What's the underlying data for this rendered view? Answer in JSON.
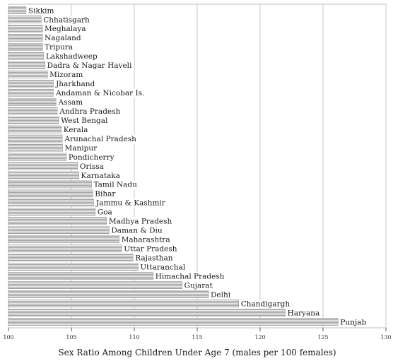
{
  "chart_data": {
    "type": "bar",
    "orientation": "horizontal",
    "xlabel": "Sex Ratio Among Children Under Age 7 (males per 100 females)",
    "xlim": [
      100,
      130
    ],
    "xticks": [
      "100",
      "105",
      "110",
      "115",
      "120",
      "125",
      "130"
    ],
    "grid": true,
    "categories": [
      "Sikkim",
      "Chhatisgarh",
      "Meghalaya",
      "Nagaland",
      "Tripura",
      "Lakshadweep",
      "Dadra & Nagar Haveli",
      "Mizoram",
      "Jharkhand",
      "Andaman & Nicobar Is.",
      "Assam",
      "Andhra Pradesh",
      "West Bengal",
      "Kerala",
      "Arunachal Pradesh",
      "Manipur",
      "Pondicherry",
      "Orissa",
      "Karnataka",
      "Tamil Nadu",
      "Bihar",
      "Jammu & Kashmir",
      "Goa",
      "Madhya Pradesh",
      "Daman & Diu",
      "Maharashtra",
      "Uttar Pradesh",
      "Rajasthan",
      "Uttaranchal",
      "Himachal Pradesh",
      "Gujarat",
      "Delhi",
      "Chandigargh",
      "Haryana",
      "Punjab"
    ],
    "values": [
      101.4,
      102.6,
      102.7,
      102.7,
      102.7,
      102.8,
      102.9,
      103.1,
      103.6,
      103.6,
      103.8,
      103.9,
      104.0,
      104.2,
      104.3,
      104.3,
      104.6,
      105.5,
      105.6,
      106.6,
      106.7,
      106.8,
      106.9,
      107.8,
      108.0,
      108.8,
      109.0,
      109.9,
      110.3,
      111.5,
      113.8,
      115.9,
      118.3,
      122.0,
      126.2
    ]
  }
}
